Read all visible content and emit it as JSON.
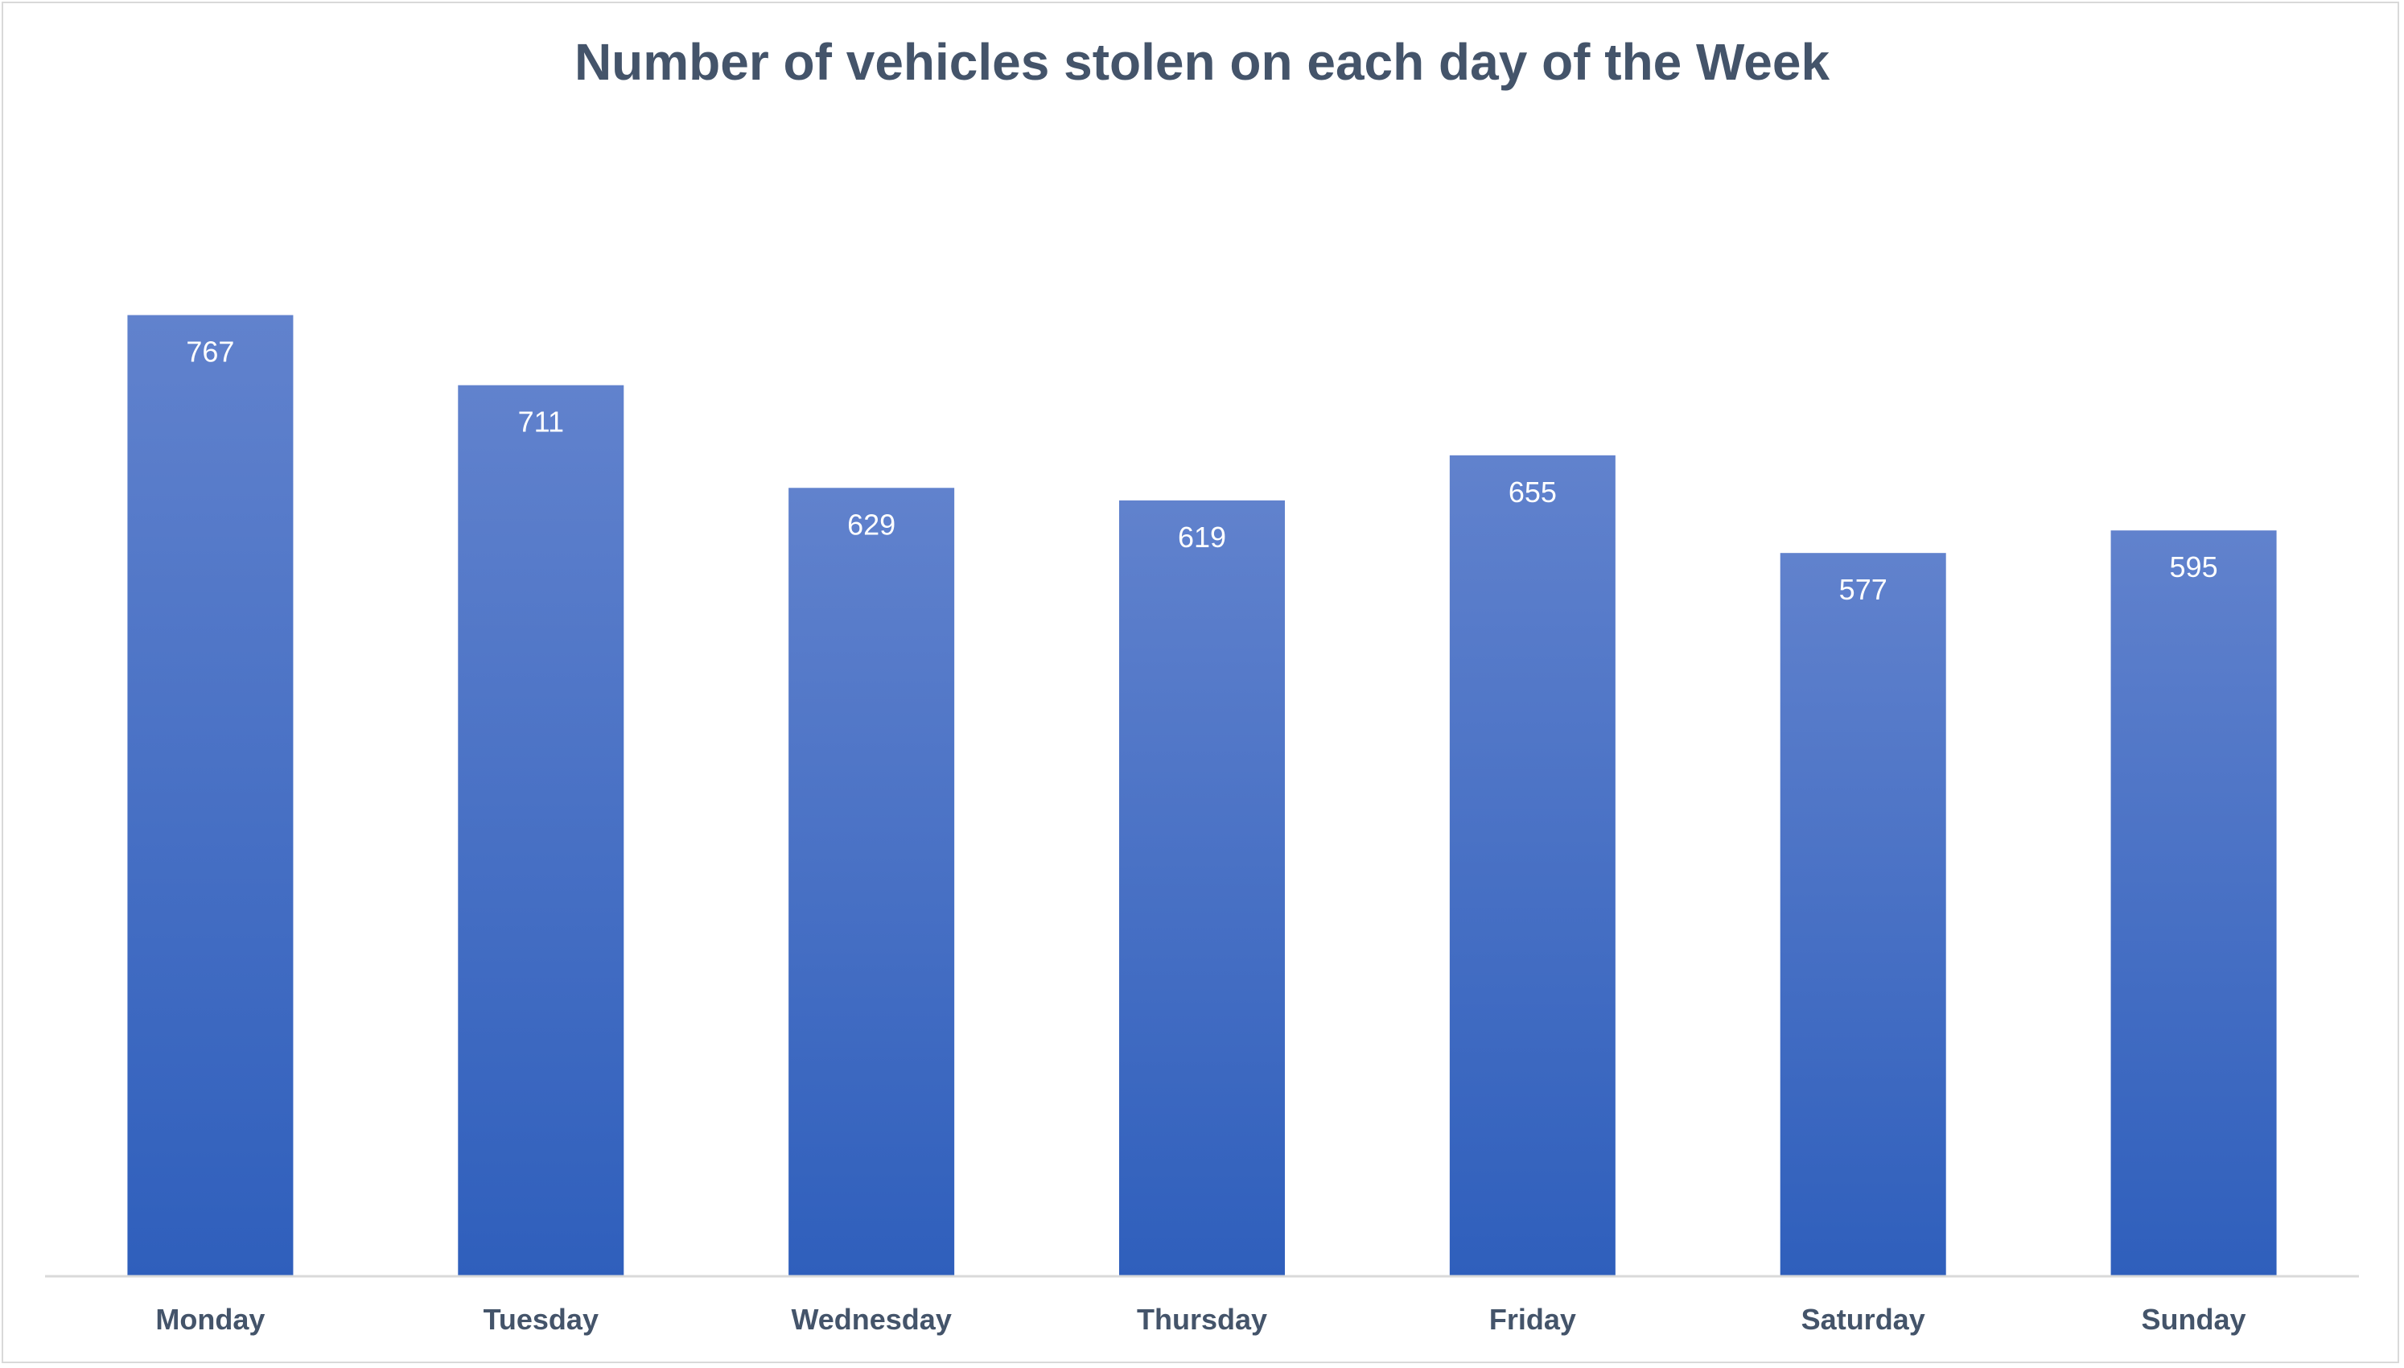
{
  "chart_data": {
    "type": "bar",
    "title": "Number of vehicles stolen on each day of the Week",
    "categories": [
      "Monday",
      "Tuesday",
      "Wednesday",
      "Thursday",
      "Friday",
      "Saturday",
      "Sunday"
    ],
    "values": [
      767,
      711,
      629,
      619,
      655,
      577,
      595
    ],
    "xlabel": "",
    "ylabel": "",
    "ylim": [
      0,
      900
    ],
    "grid": false,
    "legend": "none",
    "data_labels": "inside-end",
    "colors": {
      "bar_top": "#6182cd",
      "bar_bottom": "#2f5fbc",
      "axis": "#d9d9d9",
      "title": "#44546a",
      "label": "#ffffff"
    }
  }
}
